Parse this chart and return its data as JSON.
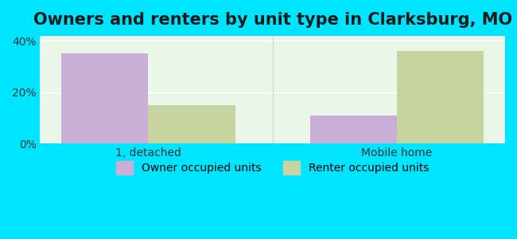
{
  "title": "Owners and renters by unit type in Clarksburg, MO",
  "categories": [
    "1, detached",
    "Mobile home"
  ],
  "owner_values": [
    35.0,
    11.0
  ],
  "renter_values": [
    15.0,
    36.0
  ],
  "owner_color": "#c9aed6",
  "renter_color": "#c8d4a0",
  "ylim": [
    0,
    42
  ],
  "yticks": [
    0,
    20,
    40
  ],
  "ytick_labels": [
    "0%",
    "20%",
    "40%"
  ],
  "bar_width": 0.35,
  "background_color": "#eaf7e8",
  "outer_background": "#00e5ff",
  "legend_owner": "Owner occupied units",
  "legend_renter": "Renter occupied units",
  "title_fontsize": 15,
  "tick_fontsize": 10,
  "legend_fontsize": 10
}
